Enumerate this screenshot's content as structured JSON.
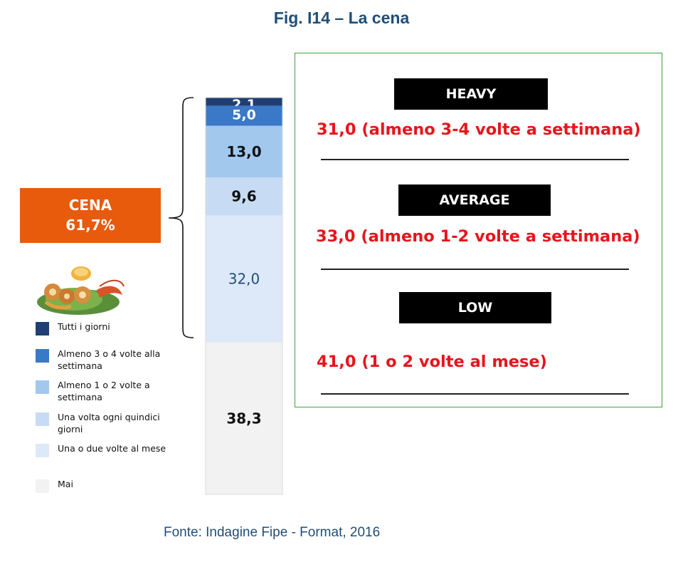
{
  "title": "Fig. I14 – La cena",
  "cena_box": {
    "label": "CENA",
    "value": "61,7%"
  },
  "food_image_icon": "seafood-dish-icon",
  "chart_data": {
    "type": "bar",
    "stacked": true,
    "categories": [
      "La cena"
    ],
    "series": [
      {
        "name": "Tutti i giorni",
        "values": [
          2.1
        ],
        "color": "#1f3f73",
        "label": "2,1",
        "label_color": "#ffffff"
      },
      {
        "name": "Almeno 3 o 4 volte alla settimana",
        "values": [
          5.0
        ],
        "color": "#3a78c8",
        "label": "5,0",
        "label_color": "#ffffff"
      },
      {
        "name": "Almeno 1 o 2 volte a settimana",
        "values": [
          13.0
        ],
        "color": "#a2c8ee",
        "label": "13,0",
        "label_color": "#111111"
      },
      {
        "name": "Una volta ogni quindici giorni",
        "values": [
          9.6
        ],
        "color": "#c7dcf4",
        "label": "9,6",
        "label_color": "#111111"
      },
      {
        "name": "Una o due volte al mese",
        "values": [
          32.0
        ],
        "color": "#dde9f8",
        "label": "32,0",
        "label_color": "#1f4e79"
      },
      {
        "name": "Mai",
        "values": [
          38.3
        ],
        "color": "#f2f2f2",
        "label": "38,3",
        "label_color": "#111111"
      }
    ],
    "ylim": [
      0,
      100
    ],
    "legend_position": "left"
  },
  "legend": [
    {
      "label": "Tutti i giorni",
      "color": "#1f3f73"
    },
    {
      "label": "Almeno 3 o 4 volte alla settimana",
      "color": "#3a78c8"
    },
    {
      "label": "Almeno 1 o 2 volte a settimana",
      "color": "#a2c8ee"
    },
    {
      "label": "Una volta ogni quindici giorni",
      "color": "#c7dcf4"
    },
    {
      "label": "Una o due volte al mese",
      "color": "#dde9f8"
    },
    {
      "label": "Mai",
      "color": "#f2f2f2"
    }
  ],
  "segments": [
    {
      "title": "HEAVY",
      "desc": "31,0 (almeno 3-4 volte a settimana)"
    },
    {
      "title": "AVERAGE",
      "desc": "33,0 (almeno 1-2 volte a settimana)"
    },
    {
      "title": "LOW",
      "desc": "41,0 (1 o 2 volte al mese)"
    }
  ],
  "source": "Fonte: Indagine Fipe - Format, 2016",
  "colors": {
    "accent_orange": "#e85a0c",
    "title_blue": "#1f4e79",
    "panel_border": "#3aa33a",
    "segment_red": "#e8141b"
  }
}
